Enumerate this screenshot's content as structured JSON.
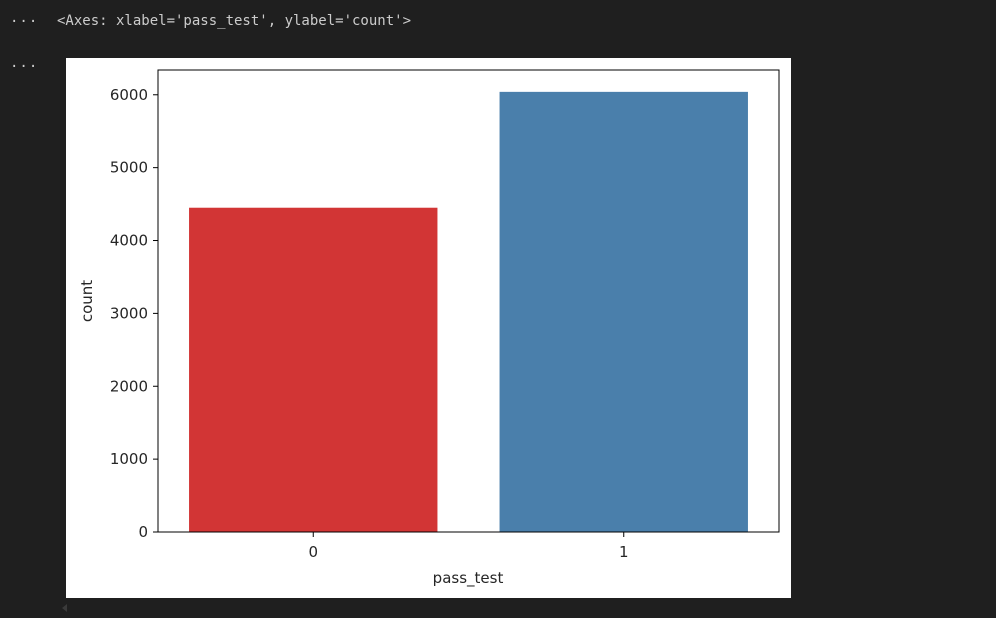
{
  "cell": {
    "output_ellipsis_1": "···",
    "output_ellipsis_2": "···",
    "repr_text": "<Axes: xlabel='pass_test', ylabel='count'>"
  },
  "chart_data": {
    "type": "bar",
    "categories": [
      "0",
      "1"
    ],
    "values": [
      4450,
      6040
    ],
    "colors": [
      "#d23535",
      "#4a7fab"
    ],
    "xlabel": "pass_test",
    "ylabel": "count",
    "ylim": [
      0,
      6340
    ],
    "yticks": [
      0,
      1000,
      2000,
      3000,
      4000,
      5000,
      6000
    ],
    "grid": false
  }
}
